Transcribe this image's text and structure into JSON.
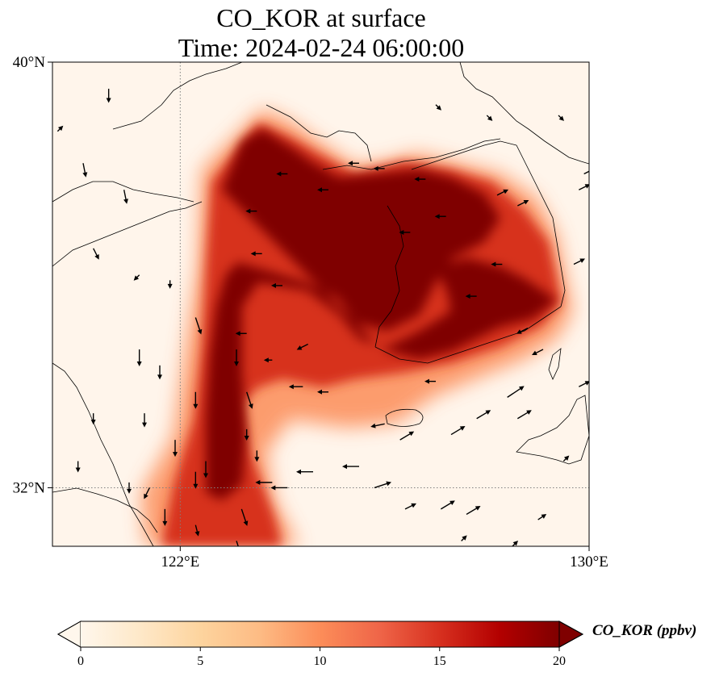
{
  "title": {
    "line1": "CO_KOR at surface",
    "line2": "Time: 2024-02-24 06:00:00"
  },
  "map": {
    "variable": "CO_KOR",
    "level": "surface",
    "units": "ppbv",
    "lon_range": [
      119.5,
      130
    ],
    "lat_range": [
      30.9,
      40
    ],
    "lon_ticks": [
      {
        "value": 122,
        "label": "122°E"
      },
      {
        "value": 130,
        "label": "130°E"
      }
    ],
    "lat_ticks": [
      {
        "value": 40,
        "label": "40°N"
      },
      {
        "value": 32,
        "label": "32°N"
      }
    ],
    "gridlines": {
      "lon": [
        122
      ],
      "lat": [
        32
      ],
      "style": "dotted",
      "color": "#808080"
    },
    "background_color": "#fff5eb",
    "coastline_color": "#000000"
  },
  "colorbar": {
    "label": "CO_KOR (ppbv)",
    "min": 0,
    "max": 20,
    "extend": "both",
    "colormap": "OrRd",
    "ticks": [
      {
        "value": 0,
        "label": "0"
      },
      {
        "value": 5,
        "label": "5"
      },
      {
        "value": 10,
        "label": "10"
      },
      {
        "value": 15,
        "label": "15"
      },
      {
        "value": 20,
        "label": "20"
      }
    ],
    "color_stops": [
      {
        "value": 0,
        "color": "#fff7ec"
      },
      {
        "value": 2.5,
        "color": "#fee8c8"
      },
      {
        "value": 5,
        "color": "#fdd49e"
      },
      {
        "value": 7.5,
        "color": "#fdbb84"
      },
      {
        "value": 10,
        "color": "#fc8d59"
      },
      {
        "value": 12.5,
        "color": "#ef6548"
      },
      {
        "value": 15,
        "color": "#d7301f"
      },
      {
        "value": 17.5,
        "color": "#b30000"
      },
      {
        "value": 20,
        "color": "#7f0000"
      }
    ]
  },
  "plume": {
    "core_color": "#7f0000",
    "edge_colors": [
      "#d7301f",
      "#fc8d59",
      "#fdd49e"
    ]
  },
  "wind_vectors": {
    "color": "#000000",
    "note_units": "lon/lat degrees",
    "vectors": [
      [
        120.6,
        39.5,
        0.0,
        -0.25
      ],
      [
        119.6,
        38.7,
        0.1,
        0.1
      ],
      [
        120.1,
        38.1,
        0.05,
        -0.25
      ],
      [
        120.9,
        37.6,
        0.05,
        -0.25
      ],
      [
        120.3,
        36.5,
        0.1,
        -0.2
      ],
      [
        121.2,
        36.0,
        -0.1,
        -0.1
      ],
      [
        121.8,
        35.9,
        0.0,
        -0.15
      ],
      [
        122.3,
        35.2,
        0.1,
        -0.3
      ],
      [
        121.2,
        34.6,
        0.0,
        -0.3
      ],
      [
        121.6,
        34.3,
        0.0,
        -0.25
      ],
      [
        122.3,
        33.8,
        0.0,
        -0.3
      ],
      [
        121.3,
        33.4,
        0.0,
        -0.25
      ],
      [
        120.3,
        33.4,
        0.0,
        -0.2
      ],
      [
        121.9,
        32.9,
        0.0,
        -0.3
      ],
      [
        122.5,
        32.5,
        0.0,
        -0.3
      ],
      [
        122.3,
        32.3,
        0.0,
        -0.3
      ],
      [
        121.0,
        32.1,
        0.0,
        -0.2
      ],
      [
        121.4,
        32.0,
        -0.1,
        -0.2
      ],
      [
        120.0,
        32.5,
        0.0,
        -0.2
      ],
      [
        121.7,
        31.6,
        0.0,
        -0.3
      ],
      [
        122.3,
        31.3,
        0.05,
        -0.2
      ],
      [
        123.2,
        31.6,
        0.1,
        -0.3
      ],
      [
        123.1,
        31.0,
        0.1,
        -0.3
      ],
      [
        122.0,
        30.9,
        0.1,
        -0.2
      ],
      [
        123.5,
        32.7,
        0.0,
        -0.2
      ],
      [
        123.3,
        33.1,
        0.0,
        -0.2
      ],
      [
        123.3,
        33.8,
        0.1,
        -0.3
      ],
      [
        123.1,
        34.6,
        0.0,
        -0.3
      ],
      [
        123.8,
        34.4,
        -0.15,
        0.0
      ],
      [
        124.4,
        33.9,
        -0.25,
        0.0
      ],
      [
        124.9,
        33.8,
        -0.2,
        0.0
      ],
      [
        123.3,
        34.9,
        -0.2,
        0.0
      ],
      [
        124.5,
        34.7,
        -0.2,
        -0.1
      ],
      [
        124.0,
        35.8,
        -0.2,
        0.0
      ],
      [
        123.6,
        36.4,
        -0.2,
        0.0
      ],
      [
        123.5,
        37.2,
        -0.2,
        0.0
      ],
      [
        124.1,
        37.9,
        -0.2,
        0.0
      ],
      [
        124.9,
        37.6,
        -0.2,
        0.0
      ],
      [
        125.5,
        38.1,
        -0.2,
        0.0
      ],
      [
        126.0,
        38.0,
        -0.2,
        0.0
      ],
      [
        126.8,
        37.8,
        -0.2,
        0.0
      ],
      [
        127.2,
        37.1,
        -0.2,
        0.0
      ],
      [
        128.3,
        36.2,
        -0.2,
        0.0
      ],
      [
        126.5,
        36.8,
        -0.2,
        0.0
      ],
      [
        127.8,
        35.6,
        -0.2,
        0.0
      ],
      [
        128.8,
        35.0,
        -0.2,
        -0.1
      ],
      [
        129.1,
        34.6,
        -0.2,
        -0.1
      ],
      [
        127.0,
        34.0,
        -0.2,
        0.0
      ],
      [
        126.0,
        33.2,
        -0.25,
        -0.05
      ],
      [
        125.5,
        32.4,
        -0.3,
        0.0
      ],
      [
        124.6,
        32.3,
        -0.3,
        0.0
      ],
      [
        124.1,
        32.0,
        -0.3,
        0.0
      ],
      [
        123.8,
        32.1,
        -0.3,
        0.0
      ],
      [
        125.8,
        32.0,
        0.3,
        0.1
      ],
      [
        126.3,
        32.9,
        0.25,
        0.15
      ],
      [
        127.3,
        33.0,
        0.25,
        0.15
      ],
      [
        127.8,
        33.3,
        0.25,
        0.15
      ],
      [
        128.4,
        33.7,
        0.3,
        0.2
      ],
      [
        128.6,
        33.3,
        0.25,
        0.15
      ],
      [
        126.4,
        31.6,
        0.2,
        0.1
      ],
      [
        127.1,
        31.6,
        0.25,
        0.15
      ],
      [
        127.6,
        31.5,
        0.25,
        0.15
      ],
      [
        127.5,
        31.0,
        0.1,
        0.1
      ],
      [
        129.0,
        31.4,
        0.15,
        0.1
      ],
      [
        128.5,
        30.9,
        0.1,
        0.1
      ],
      [
        129.5,
        32.5,
        0.1,
        0.1
      ],
      [
        129.8,
        33.9,
        0.2,
        0.1
      ],
      [
        129.8,
        37.6,
        0.2,
        0.1
      ],
      [
        129.9,
        37.9,
        0.2,
        0.1
      ],
      [
        129.7,
        36.2,
        0.2,
        0.1
      ],
      [
        128.6,
        37.3,
        0.2,
        0.1
      ],
      [
        128.2,
        37.5,
        0.2,
        0.1
      ],
      [
        127.0,
        39.2,
        0.1,
        -0.1
      ],
      [
        128.0,
        39.0,
        0.1,
        -0.1
      ],
      [
        129.4,
        39.0,
        0.1,
        -0.1
      ]
    ]
  }
}
